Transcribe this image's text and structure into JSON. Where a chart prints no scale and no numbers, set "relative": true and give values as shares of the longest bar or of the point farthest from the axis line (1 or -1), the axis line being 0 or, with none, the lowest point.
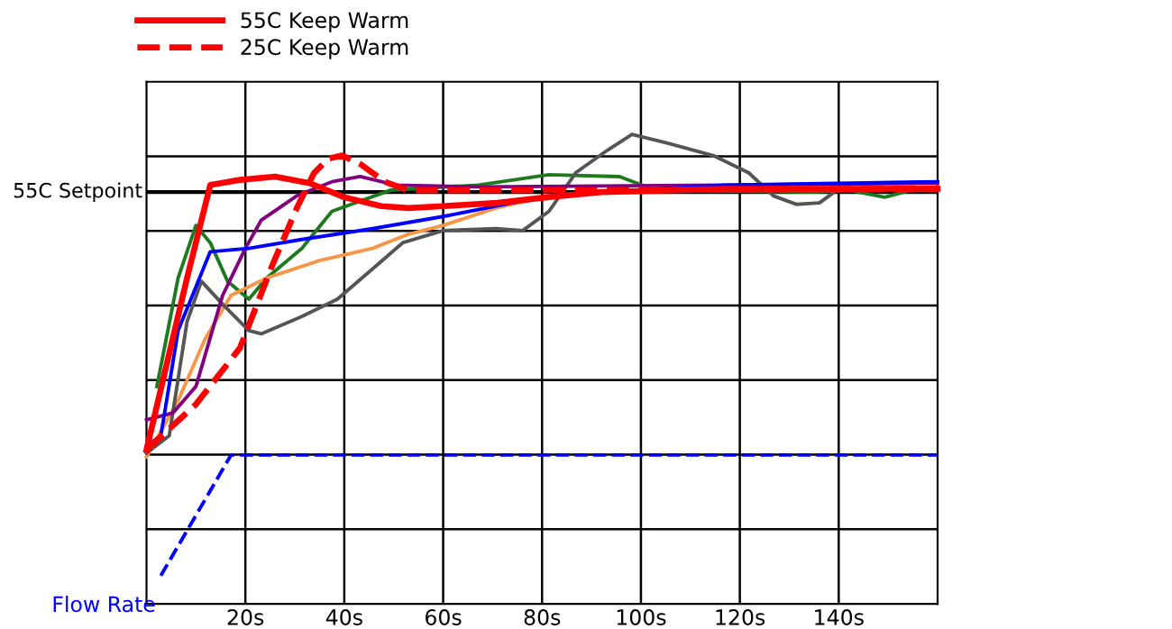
{
  "chart_data": {
    "type": "line",
    "relative": true,
    "xlim": [
      0,
      160
    ],
    "xticks": [
      {
        "value": 20,
        "label": "20s"
      },
      {
        "value": 40,
        "label": "40s"
      },
      {
        "value": 60,
        "label": "60s"
      },
      {
        "value": 80,
        "label": "80s"
      },
      {
        "value": 100,
        "label": "100s"
      },
      {
        "value": 120,
        "label": "120s"
      },
      {
        "value": 140,
        "label": "140s"
      }
    ],
    "grid": true,
    "legend": "top left",
    "marker": "none",
    "ref_lines": [
      {
        "axis": "y",
        "value": 0.877,
        "label": "55C Setpoint",
        "color": "#000000"
      }
    ],
    "annotations": [
      {
        "text": "Flow Rate",
        "x": 2.9,
        "y": 0.06
      }
    ],
    "series": [
      {
        "name": "55C Keep Warm",
        "color": "#ff0000",
        "line_style": "solid",
        "x": [
          0,
          8.2,
          12.9,
          18.9,
          26,
          33,
          40,
          47.5,
          53,
          60,
          71,
          81,
          92,
          117,
          160
        ],
        "values": [
          0.328,
          0.694,
          0.892,
          0.903,
          0.91,
          0.896,
          0.866,
          0.847,
          0.843,
          0.847,
          0.854,
          0.866,
          0.877,
          0.884,
          0.884
        ]
      },
      {
        "name": "25C Keep Warm",
        "color": "#ff0000",
        "line_style": "dashed",
        "x": [
          0,
          10,
          18.9,
          25.4,
          30.4,
          33.9,
          36.8,
          39.6,
          43.2,
          48.2,
          52.9,
          81.4,
          160
        ],
        "values": [
          0.328,
          0.425,
          0.545,
          0.72,
          0.843,
          0.918,
          0.948,
          0.955,
          0.937,
          0.899,
          0.881,
          0.881,
          0.884
        ]
      },
      {
        "color": "#1f7a1f",
        "line_style": "solid",
        "x": [
          2.1,
          6.4,
          10,
          12.9,
          16.4,
          20.7,
          24.3,
          31.4,
          37.5,
          49.3,
          67.1,
          81.4,
          95.7,
          102.9,
          135,
          142.1,
          149.3,
          154.6,
          160
        ],
        "values": [
          0.463,
          0.694,
          0.806,
          0.769,
          0.687,
          0.649,
          0.694,
          0.757,
          0.836,
          0.881,
          0.892,
          0.914,
          0.91,
          0.881,
          0.877,
          0.881,
          0.866,
          0.881,
          0.881
        ]
      },
      {
        "color": "#f79646",
        "line_style": "solid",
        "x": [
          0,
          6.4,
          11.8,
          17.1,
          24.3,
          35,
          45.7,
          52.9,
          60,
          70.7,
          81.4,
          99.3,
          160
        ],
        "values": [
          0.313,
          0.433,
          0.563,
          0.657,
          0.694,
          0.731,
          0.757,
          0.787,
          0.806,
          0.843,
          0.869,
          0.881,
          0.888
        ]
      },
      {
        "color": "#555555",
        "line_style": "solid",
        "x": [
          0,
          4.6,
          8.2,
          11.1,
          15.4,
          20.7,
          23.2,
          31.4,
          38.6,
          45.7,
          51.8,
          60,
          70.7,
          76.1,
          81.4,
          86.8,
          93.2,
          98.2,
          105.4,
          114.6,
          121.8,
          126.8,
          131.4,
          136.1,
          139.6,
          160
        ],
        "values": [
          0.321,
          0.358,
          0.601,
          0.687,
          0.638,
          0.582,
          0.575,
          0.612,
          0.649,
          0.713,
          0.769,
          0.795,
          0.799,
          0.795,
          0.836,
          0.918,
          0.966,
          1.0,
          0.981,
          0.955,
          0.918,
          0.869,
          0.851,
          0.854,
          0.881,
          0.884
        ]
      },
      {
        "color": "#800080",
        "line_style": "solid",
        "x": [
          0,
          5.4,
          10,
          15.4,
          20,
          23.2,
          30.4,
          37.5,
          43.2,
          50.4,
          67.1,
          117.1,
          160
        ],
        "values": [
          0.392,
          0.407,
          0.463,
          0.657,
          0.757,
          0.817,
          0.869,
          0.899,
          0.91,
          0.892,
          0.888,
          0.892,
          0.896
        ]
      },
      {
        "color": "#0000ff",
        "line_style": "solid",
        "x": [
          0,
          2.9,
          6.4,
          12.9,
          20.7,
          31.4,
          45.7,
          60,
          77.9,
          92.1,
          117.1,
          160
        ],
        "values": [
          0.336,
          0.358,
          0.582,
          0.75,
          0.757,
          0.776,
          0.799,
          0.825,
          0.862,
          0.877,
          0.892,
          0.899
        ]
      },
      {
        "color": "#0000ff",
        "line_style": "dashed",
        "x": [
          2.9,
          17.1,
          160
        ],
        "values": [
          0.06,
          0.317,
          0.317
        ]
      }
    ]
  }
}
